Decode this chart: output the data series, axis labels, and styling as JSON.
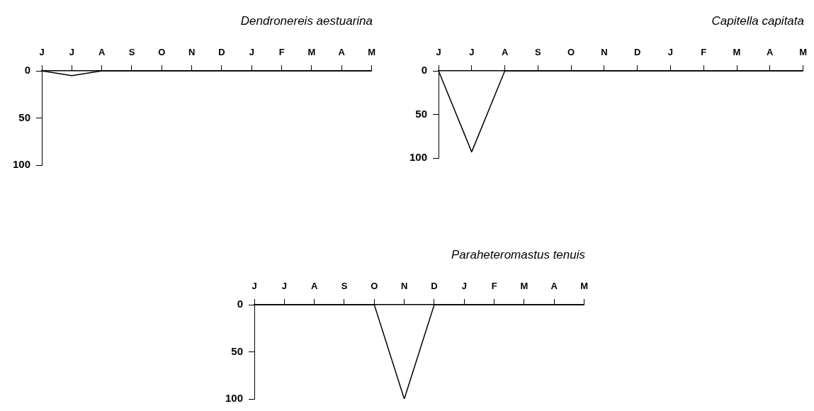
{
  "chart_data": [
    {
      "type": "line",
      "title": "Dendronereis aestuarina",
      "categories": [
        "J",
        "J",
        "A",
        "S",
        "O",
        "N",
        "D",
        "J",
        "F",
        "M",
        "A",
        "M"
      ],
      "values": [
        0,
        5,
        0,
        0,
        0,
        0,
        0,
        0,
        0,
        0,
        0,
        0
      ],
      "color": "#000000",
      "ylim": [
        100,
        0
      ],
      "yticks": [
        0,
        50,
        100
      ],
      "grid": false,
      "marker": "none"
    },
    {
      "type": "line",
      "title": "Capitella capitata",
      "categories": [
        "J",
        "J",
        "A",
        "S",
        "O",
        "N",
        "D",
        "J",
        "F",
        "M",
        "A",
        "M"
      ],
      "values": [
        0,
        93,
        0,
        0,
        0,
        0,
        0,
        0,
        0,
        0,
        0,
        0
      ],
      "color": "#000000",
      "ylim": [
        100,
        0
      ],
      "yticks": [
        0,
        50,
        100
      ],
      "grid": false,
      "marker": "none"
    },
    {
      "type": "line",
      "title": "Paraheteromastus tenuis",
      "categories": [
        "J",
        "J",
        "A",
        "S",
        "O",
        "N",
        "D",
        "J",
        "F",
        "M",
        "A",
        "M"
      ],
      "values": [
        0,
        0,
        0,
        0,
        0,
        100,
        0,
        0,
        0,
        0,
        0,
        0
      ],
      "color": "#000000",
      "ylim": [
        100,
        0
      ],
      "yticks": [
        0,
        50,
        100
      ],
      "grid": false,
      "marker": "none"
    }
  ]
}
